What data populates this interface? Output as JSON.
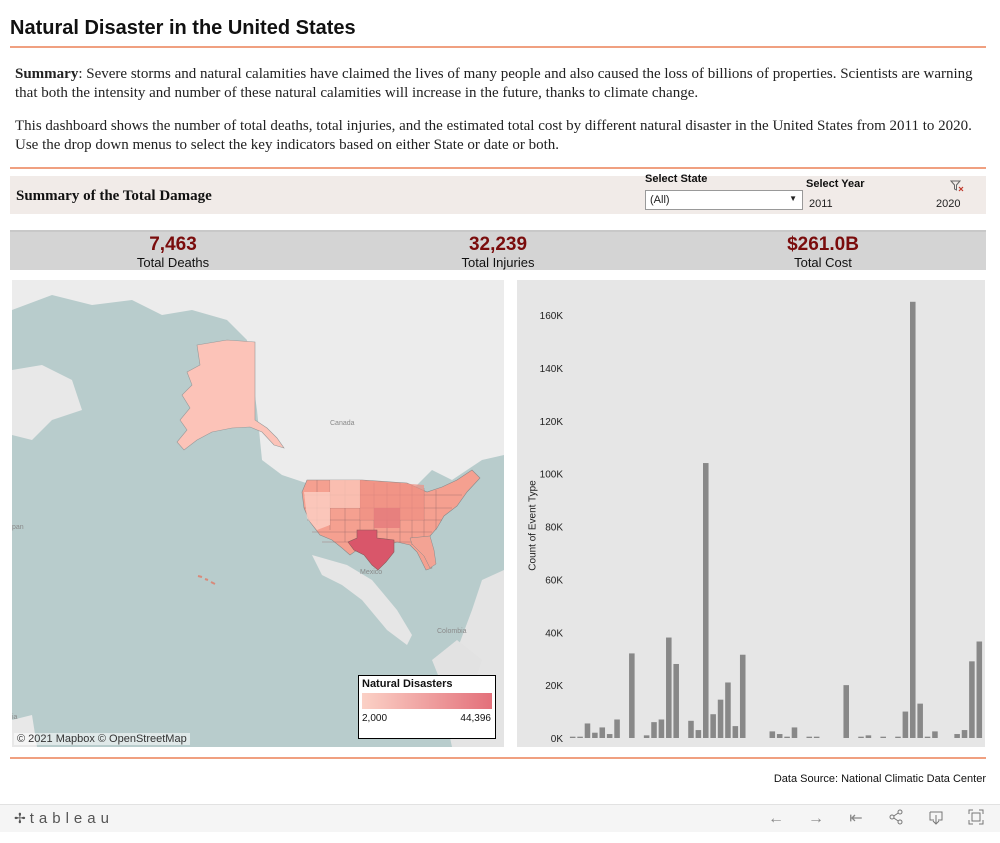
{
  "header": {
    "title": "Natural Disaster in the United States"
  },
  "summary": {
    "lead_label": "Summary",
    "para1": ": Severe storms and natural calamities have claimed the lives of many people and also caused the loss of billions of properties. Scientists are warning that both the intensity and number of these natural calamities will increase in the future, thanks to climate change.",
    "para2": "This dashboard shows the number of total deaths, total injuries, and the estimated total cost by different natural disaster in the United States from 2011 to 2020. Use the drop down menus to select the key indicators based on either State or date or both."
  },
  "filters": {
    "heading": "Summary of the Total Damage",
    "state_label": "Select State",
    "state_value": "(All)",
    "year_label": "Select Year",
    "year_start": "2011",
    "year_end": "2020"
  },
  "kpis": {
    "deaths": {
      "value": "7,463",
      "label": "Total Deaths"
    },
    "injuries": {
      "value": "32,239",
      "label": "Total Injuries"
    },
    "cost": {
      "value": "$261.0B",
      "label": "Total Cost"
    }
  },
  "map": {
    "labels": {
      "canada": "Canada",
      "mexico": "Mexico",
      "colombia": "Colombia",
      "japan": "pan",
      "asia": "ia"
    },
    "attribution": "© 2021 Mapbox © OpenStreetMap",
    "legend": {
      "title": "Natural Disasters",
      "min": "2,000",
      "max": "44,396"
    },
    "colors": {
      "low": "#fbd1c6",
      "high": "#e3707a",
      "texas": "#d9566a"
    }
  },
  "chart_data": {
    "type": "bar",
    "ylabel": "Count of Event Type",
    "ylim": [
      0,
      170000
    ],
    "yticks": [
      "0K",
      "20K",
      "40K",
      "60K",
      "80K",
      "100K",
      "120K",
      "140K",
      "160K"
    ],
    "values": [
      500,
      500,
      5500,
      2000,
      4000,
      1500,
      7000,
      0,
      32000,
      0,
      1000,
      6000,
      7000,
      38000,
      28000,
      0,
      6500,
      3000,
      104000,
      9000,
      14500,
      21000,
      4500,
      31500,
      0,
      0,
      0,
      2500,
      1500,
      500,
      4000,
      0,
      500,
      500,
      0,
      0,
      0,
      20000,
      0,
      500,
      1000,
      0,
      500,
      0,
      500,
      10000,
      165000,
      13000,
      500,
      2500,
      0,
      0,
      1500,
      3000,
      29000,
      36500
    ],
    "color": "#888888"
  },
  "footer": {
    "source": "Data Source: National Climatic Data Center",
    "logo": "tableau"
  }
}
